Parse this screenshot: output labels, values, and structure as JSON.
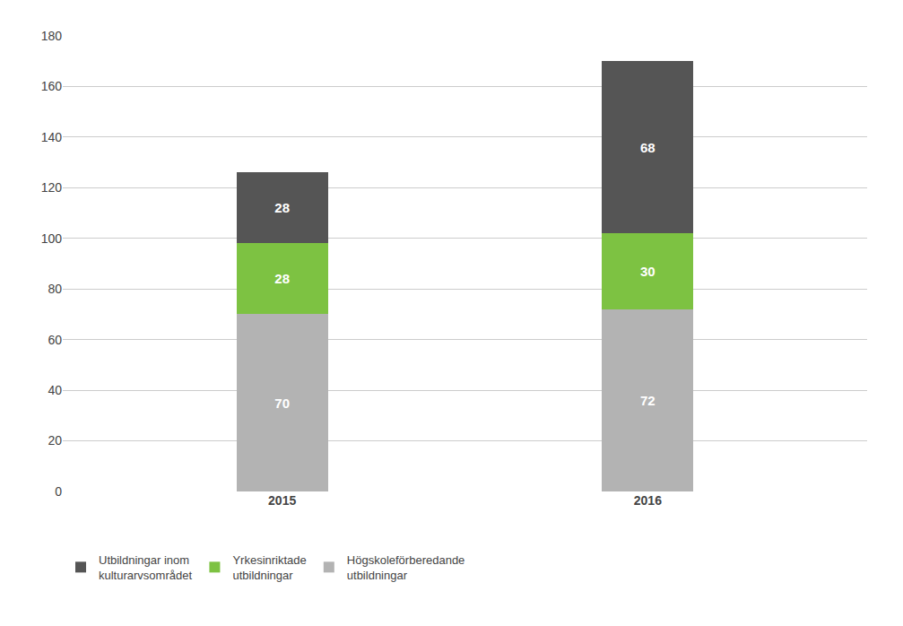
{
  "chart_data": {
    "type": "bar",
    "stacked": true,
    "categories": [
      "2015",
      "2016"
    ],
    "series": [
      {
        "name": "Högskoleförberedande\nutbildningar",
        "values": [
          70,
          72
        ],
        "color": "#b3b3b3"
      },
      {
        "name": "Yrkesinriktade\nutbildningar",
        "values": [
          28,
          30
        ],
        "color": "#7dc242"
      },
      {
        "name": "Utbildningar inom\nkulturarvsområdet",
        "values": [
          28,
          68
        ],
        "color": "#555555"
      }
    ],
    "ylim": [
      0,
      180
    ],
    "yticks": [
      0,
      20,
      40,
      60,
      80,
      100,
      120,
      140,
      160,
      180
    ],
    "grid": true,
    "data_labels": true,
    "legend": "lower left"
  }
}
